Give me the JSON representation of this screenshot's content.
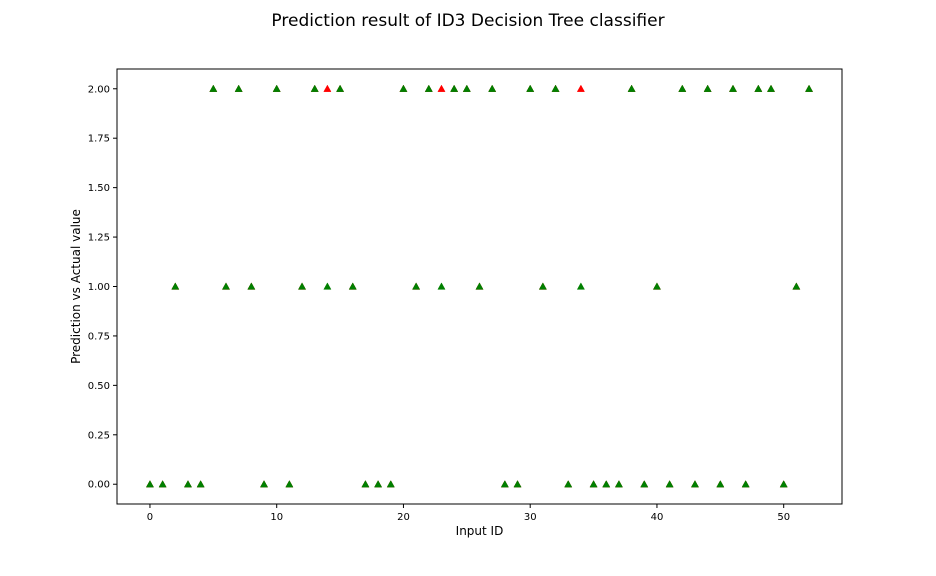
{
  "chart_data": {
    "type": "scatter",
    "title": "Prediction result of ID3 Decision Tree classifier",
    "xlabel": "Input ID",
    "ylabel": "Prediction vs Actual value",
    "xlim": [
      -2.6,
      54.6
    ],
    "ylim": [
      -0.1,
      2.1
    ],
    "x_ticks": [
      0,
      10,
      20,
      30,
      40,
      50
    ],
    "y_ticks": [
      0.0,
      0.25,
      0.5,
      0.75,
      1.0,
      1.25,
      1.5,
      1.75,
      2.0
    ],
    "y_tick_labels": [
      "0.00",
      "0.25",
      "0.50",
      "0.75",
      "1.00",
      "1.25",
      "1.50",
      "1.75",
      "2.00"
    ],
    "grid": false,
    "marker": "triangle-up",
    "series": [
      {
        "color": "#ff0000",
        "x": [
          0,
          1,
          2,
          3,
          4,
          5,
          6,
          7,
          8,
          9,
          10,
          11,
          12,
          13,
          14,
          15,
          16,
          17,
          18,
          19,
          20,
          21,
          22,
          23,
          24,
          25,
          26,
          27,
          28,
          29,
          30,
          31,
          32,
          33,
          34,
          35,
          36,
          37,
          38,
          39,
          40,
          41,
          42,
          43,
          44,
          45,
          46,
          47,
          48,
          49,
          50,
          51,
          52
        ],
        "values": [
          0,
          0,
          1,
          0,
          0,
          2,
          1,
          2,
          1,
          0,
          2,
          0,
          1,
          2,
          2,
          2,
          1,
          0,
          0,
          0,
          2,
          1,
          2,
          2,
          2,
          2,
          1,
          2,
          0,
          0,
          2,
          1,
          2,
          0,
          2,
          0,
          0,
          0,
          2,
          0,
          1,
          0,
          2,
          0,
          2,
          0,
          2,
          0,
          2,
          2,
          0,
          1,
          2
        ]
      },
      {
        "color": "#008000",
        "x": [
          0,
          1,
          2,
          3,
          4,
          5,
          6,
          7,
          8,
          9,
          10,
          11,
          12,
          13,
          14,
          15,
          16,
          17,
          18,
          19,
          20,
          21,
          22,
          23,
          24,
          25,
          26,
          27,
          28,
          29,
          30,
          31,
          32,
          33,
          34,
          35,
          36,
          37,
          38,
          39,
          40,
          41,
          42,
          43,
          44,
          45,
          46,
          47,
          48,
          49,
          50,
          51,
          52
        ],
        "values": [
          0,
          0,
          1,
          0,
          0,
          2,
          1,
          2,
          1,
          0,
          2,
          0,
          1,
          2,
          1,
          2,
          1,
          0,
          0,
          0,
          2,
          1,
          2,
          1,
          2,
          2,
          1,
          2,
          0,
          0,
          2,
          1,
          2,
          0,
          1,
          0,
          0,
          0,
          2,
          0,
          1,
          0,
          2,
          0,
          2,
          0,
          2,
          0,
          2,
          2,
          0,
          1,
          2
        ]
      }
    ]
  }
}
